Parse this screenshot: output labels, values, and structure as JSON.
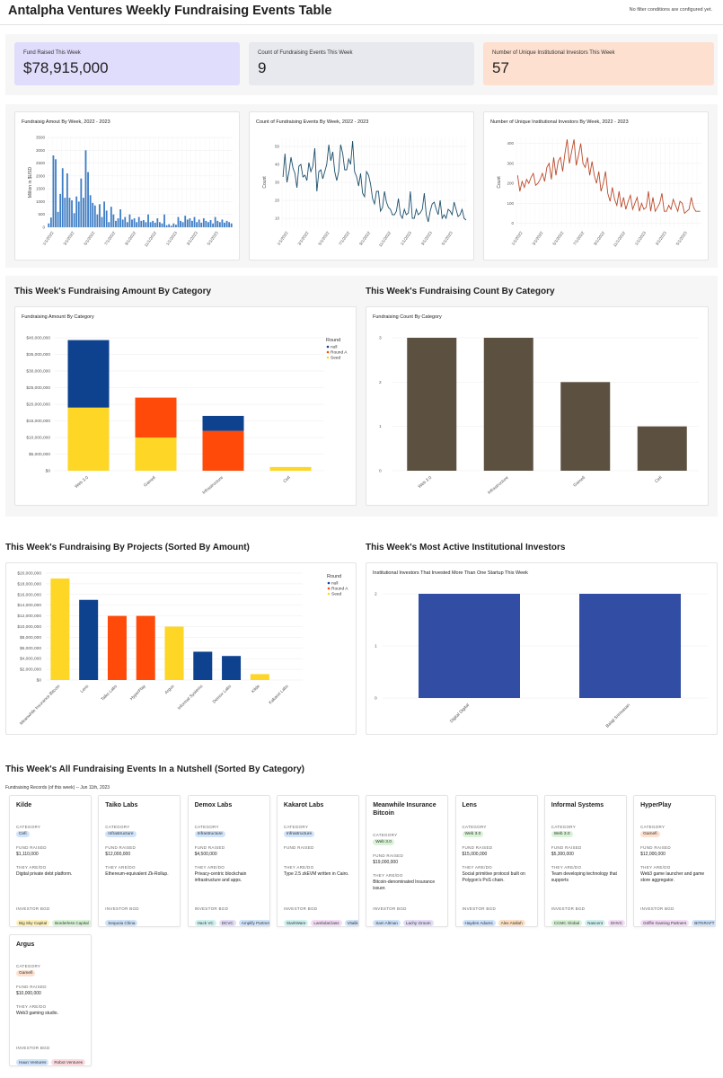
{
  "header": {
    "title": "Antalpha Ventures Weekly Fundraising Events Table",
    "filter_note": "No filter conditions are configured yet."
  },
  "kpis": [
    {
      "label": "Fund Raised This Week",
      "value": "$78,915,000",
      "color": "#e0dcfb"
    },
    {
      "label": "Count of Fundraising Events This Week",
      "value": "9",
      "color": "#e7e9ee"
    },
    {
      "label": "Number of Unique Institutional Investors This Week",
      "value": "57",
      "color": "#fde0cf"
    }
  ],
  "trend_titles": [
    "Fundraisig Amout By Week, 2022 - 2023",
    "Count of Fundraising Events By Week, 2022 - 2023",
    "Number of Unique Institutional Investors By Week, 2022 - 2023"
  ],
  "sections": {
    "amount_by_category": "This Week's Fundraising Amount By Category",
    "count_by_category": "This Week's Fundraising Count By Category",
    "by_projects": "This Week's Fundraising By Projects (Sorted By Amount)",
    "active_investors": "This Week's Most Active Institutional Investors",
    "all_events": "This Week's All Fundraising Events In a Nutshell  (Sorted By Category)"
  },
  "records_caption": "Fundraising Records (of this week) -- Jun 11th, 2023",
  "field_labels": {
    "category": "CATEGORY",
    "fund_raised": "FUND RAISED",
    "they_are": "THEY ARE/DO",
    "investor": "INVESTOR BGD"
  },
  "colors": {
    "null": "#0e428e",
    "round_a": "#ff4a0a",
    "seed": "#fdd626",
    "count_bar": "#5c5140",
    "investor_bar": "#324ea4",
    "weekly_amount": "#3f7ec6",
    "weekly_count": "#1d4f6b",
    "weekly_investors": "#bb4a2b"
  },
  "chart_data": [
    {
      "type": "bar",
      "title": "Fundraisig Amout By Week, 2022 - 2023",
      "ylabel": "Million in $USD",
      "ylim": [
        0,
        3500
      ],
      "yticks": [
        0,
        500,
        1000,
        1500,
        2000,
        2500,
        3000,
        3500
      ],
      "xticklabels": [
        "1/1/2022",
        "3/1/2022",
        "5/1/2022",
        "7/1/2022",
        "9/1/2022",
        "11/1/2022",
        "1/1/2023",
        "3/1/2023",
        "5/1/2023"
      ],
      "values": [
        150,
        380,
        2800,
        2650,
        600,
        1300,
        2300,
        1150,
        2100,
        1150,
        1050,
        550,
        1200,
        1000,
        1900,
        1150,
        3000,
        2150,
        1250,
        950,
        850,
        500,
        900,
        400,
        1000,
        650,
        200,
        800,
        500,
        250,
        350,
        700,
        300,
        400,
        200,
        500,
        300,
        350,
        200,
        400,
        250,
        280,
        200,
        500,
        200,
        250,
        180,
        350,
        200,
        150,
        500,
        80,
        120,
        60,
        150,
        100,
        400,
        250,
        200,
        450,
        300,
        350,
        250,
        400,
        200,
        300,
        180,
        350,
        250,
        200,
        280,
        150,
        400,
        250,
        200,
        300,
        180,
        250,
        200,
        150
      ]
    },
    {
      "type": "line",
      "title": "Count of Fundraising Events By Week, 2022 - 2023",
      "ylabel": "Count",
      "ylim": [
        5,
        55
      ],
      "yticks": [
        10,
        20,
        30,
        40,
        50
      ],
      "xticklabels": [
        "1/1/2022",
        "3/1/2022",
        "5/1/2022",
        "7/1/2022",
        "9/1/2022",
        "11/1/2022",
        "1/1/2023",
        "3/1/2023",
        "5/1/2023"
      ],
      "values": [
        33,
        46,
        30,
        36,
        44,
        38,
        35,
        27,
        39,
        40,
        33,
        34,
        31,
        41,
        36,
        39,
        49,
        25,
        36,
        37,
        32,
        36,
        40,
        51,
        42,
        47,
        36,
        31,
        36,
        51,
        46,
        37,
        37,
        43,
        40,
        53,
        36,
        33,
        28,
        35,
        24,
        22,
        36,
        34,
        29,
        21,
        18,
        25,
        25,
        14,
        16,
        25,
        19,
        16,
        15,
        12,
        12,
        14,
        21,
        12,
        10,
        15,
        12,
        13,
        25,
        10,
        10,
        15,
        12,
        13,
        15,
        24,
        12,
        8,
        14,
        18,
        19,
        15,
        12,
        20,
        10,
        12,
        10,
        15,
        14,
        12,
        19,
        15,
        11,
        12,
        15,
        10,
        9
      ]
    },
    {
      "type": "line",
      "title": "Number of Unique Institutional Investors By Week, 2022 - 2023",
      "ylabel": "Count",
      "ylim": [
        -20,
        430
      ],
      "yticks": [
        0,
        100,
        200,
        300,
        400
      ],
      "xticklabels": [
        "1/1/2022",
        "3/1/2022",
        "5/1/2022",
        "7/1/2022",
        "9/1/2022",
        "11/1/2022",
        "1/1/2023",
        "3/1/2023",
        "5/1/2023"
      ],
      "values": [
        240,
        160,
        210,
        180,
        220,
        200,
        230,
        250,
        190,
        200,
        220,
        250,
        210,
        280,
        300,
        220,
        330,
        240,
        310,
        330,
        260,
        350,
        420,
        300,
        360,
        420,
        290,
        340,
        400,
        300,
        280,
        330,
        240,
        310,
        240,
        200,
        260,
        160,
        200,
        260,
        150,
        110,
        180,
        120,
        90,
        160,
        80,
        130,
        70,
        110,
        140,
        70,
        100,
        130,
        60,
        100,
        70,
        80,
        160,
        60,
        130,
        60,
        80,
        100,
        150,
        60,
        60,
        90,
        70,
        120,
        90,
        60,
        110,
        100,
        50,
        60,
        70,
        130,
        80,
        60,
        60,
        60
      ]
    },
    {
      "type": "bar",
      "title": "Fundraising Amount By Category",
      "categories": [
        "Web 3.0",
        "Gamefi",
        "Infrastructure",
        "Cefi"
      ],
      "series": [
        {
          "name": "Seed",
          "values": [
            19000000,
            10000000,
            0,
            1110000
          ]
        },
        {
          "name": "Round A",
          "values": [
            0,
            12000000,
            12000000,
            0
          ]
        },
        {
          "name": "null",
          "values": [
            20300000,
            0,
            4500000,
            0
          ]
        }
      ],
      "legend_title": "Round",
      "ylim": [
        0,
        40000000
      ],
      "yticklabels": [
        "$0",
        "$5,000,000",
        "$10,000,000",
        "$15,000,000",
        "$20,000,000",
        "$25,000,000",
        "$30,000,000",
        "$35,000,000",
        "$40,000,000"
      ]
    },
    {
      "type": "bar",
      "title": "Fundraising Count By Category",
      "categories": [
        "Web 3.0",
        "Infrastructure",
        "Gamefi",
        "Cefi"
      ],
      "values": [
        3,
        3,
        2,
        1
      ],
      "ylim": [
        0,
        3
      ]
    },
    {
      "type": "bar",
      "categories": [
        "Meanwhile Insurance Bitcoin",
        "Lens",
        "Taiko Labs",
        "HyperPlay",
        "Argus",
        "Informal Systems",
        "Demox Labs",
        "Kilde",
        "Kakarot Labs"
      ],
      "values": [
        19000000,
        15000000,
        12000000,
        12000000,
        10000000,
        5300000,
        4500000,
        1110000,
        0
      ],
      "rounds": [
        "Seed",
        "null",
        "Round A",
        "Round A",
        "Seed",
        "null",
        "null",
        "Seed",
        "null"
      ],
      "legend_title": "Round",
      "ylim": [
        0,
        20000000
      ],
      "yticklabels": [
        "$0",
        "$2,000,000",
        "$4,000,000",
        "$6,000,000",
        "$8,000,000",
        "$10,000,000",
        "$12,000,000",
        "$14,000,000",
        "$16,000,000",
        "$18,000,000",
        "$20,000,000"
      ]
    },
    {
      "type": "bar",
      "title": "Institutional Investors That Invested More Than One Startup This Week",
      "categories": [
        "Digital Digital",
        "Balaji Srinivasan"
      ],
      "values": [
        2,
        2
      ],
      "ylim": [
        0,
        2
      ]
    }
  ],
  "events": [
    {
      "name": "Kilde",
      "category": "Cefi",
      "cat_color": "#cfe3fb",
      "fund": "$1,110,000",
      "desc": "Digital private debt platform.",
      "investors": [
        {
          "n": "Big Sky Capital",
          "c": "#fdf0b8"
        },
        {
          "n": "Borderless Capital",
          "c": "#d8f3d6"
        }
      ]
    },
    {
      "name": "Taiko Labs",
      "category": "Infrastructure",
      "cat_color": "#cfe3fb",
      "fund": "$12,000,000",
      "desc": "Ethereum-equivalent Zk-Rollup.",
      "investors": [
        {
          "n": "Sequoia China",
          "c": "#cfe3fb"
        }
      ]
    },
    {
      "name": "Demox Labs",
      "category": "Infrastructure",
      "cat_color": "#cfe3fb",
      "fund": "$4,500,000",
      "desc": "Privacy-centric blockchain infrastructure and apps.",
      "investors": [
        {
          "n": "Hack VC",
          "c": "#cff2f0"
        },
        {
          "n": "DCVC",
          "c": "#e4dcf8"
        },
        {
          "n": "Amplify Partners",
          "c": "#cfe3fb"
        }
      ]
    },
    {
      "name": "Kakarot Labs",
      "category": "Infrastructure",
      "cat_color": "#cfe3fb",
      "fund": "",
      "desc": "Type 2.5 zkEVM written in Cairo.",
      "investors": [
        {
          "n": "StarkWare",
          "c": "#cff2f0"
        },
        {
          "n": "LambdaClass",
          "c": "#f2dcf6"
        },
        {
          "n": "Vitalik",
          "c": "#cfe3fb"
        }
      ]
    },
    {
      "name": "Meanwhile Insurance Bitcoin",
      "category": "Web 3.0",
      "cat_color": "#d8f3d6",
      "fund": "$19,000,000",
      "desc": "Bitcoin-denominated Insurance issuer.",
      "investors": [
        {
          "n": "Sam Altman",
          "c": "#cfe3fb"
        },
        {
          "n": "Lachy Groom",
          "c": "#e4dcf8"
        }
      ]
    },
    {
      "name": "Lens",
      "category": "Web 3.0",
      "cat_color": "#d8f3d6",
      "fund": "$15,000,000",
      "desc": "Social primitive protocol built on Polygon's PoS chain.",
      "investors": [
        {
          "n": "Hayden Adams",
          "c": "#cfe3fb"
        },
        {
          "n": "Alex Atallah",
          "c": "#fde0c4"
        }
      ]
    },
    {
      "name": "Informal Systems",
      "category": "Web 3.0",
      "cat_color": "#d8f3d6",
      "fund": "$5,300,000",
      "desc": "Team developing technology that supports",
      "investors": [
        {
          "n": "CCMC Global",
          "c": "#d8f3d6"
        },
        {
          "n": "Nascent",
          "c": "#cff2f0"
        },
        {
          "n": "DHVC",
          "c": "#f2dcf6"
        }
      ]
    },
    {
      "name": "HyperPlay",
      "category": "Gamefi",
      "cat_color": "#fde0cf",
      "fund": "$12,000,000",
      "desc": "Web3 game launcher and game store aggregator.",
      "investors": [
        {
          "n": "Griffin Gaming Partners",
          "c": "#f2dcf6"
        },
        {
          "n": "BITKRAFT",
          "c": "#cfe3fb"
        }
      ]
    },
    {
      "name": "Argus",
      "category": "Gamefi",
      "cat_color": "#fde0cf",
      "fund": "$10,000,000",
      "desc": "Web3 gaming studio.",
      "investors": [
        {
          "n": "Haun Ventures",
          "c": "#cfe3fb"
        },
        {
          "n": "Robot Ventures",
          "c": "#fcd9de"
        }
      ]
    }
  ]
}
